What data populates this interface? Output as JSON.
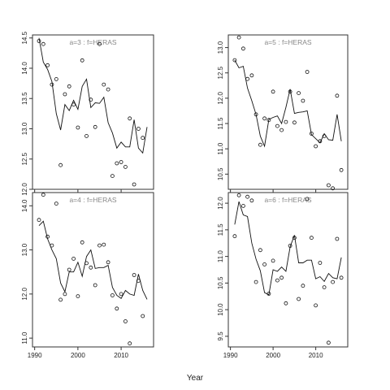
{
  "figure": {
    "xlabel": "Year"
  },
  "chart_data": [
    {
      "type": "line",
      "title": "a=3  :  f=HERAS",
      "xlim": [
        1989.5,
        2017.5
      ],
      "ylim": [
        12.0,
        14.55
      ],
      "yticks": [
        12.0,
        12.5,
        13.0,
        13.5,
        14.0,
        14.5
      ],
      "xticks": [
        1990,
        2000,
        2010
      ],
      "show_x_ticklabels": false,
      "series": [
        {
          "style": "points",
          "x": [
            1991,
            1992,
            1993,
            1994,
            1995,
            1996,
            1997,
            1998,
            1999,
            2000,
            2001,
            2002,
            2003,
            2004,
            2005,
            2006,
            2007,
            2008,
            2009,
            2010,
            2011,
            2012,
            2013,
            2014,
            2015,
            2016
          ],
          "y": [
            14.45,
            14.4,
            14.05,
            13.73,
            13.82,
            12.4,
            13.57,
            13.7,
            13.4,
            13.02,
            14.13,
            12.88,
            13.48,
            13.03,
            14.4,
            13.73,
            13.65,
            12.22,
            12.43,
            12.45,
            12.37,
            13.17,
            12.08,
            13.0,
            12.85,
            null
          ]
        },
        {
          "style": "line",
          "x": [
            1991,
            1992,
            1993,
            1994,
            1995,
            1996,
            1997,
            1998,
            1999,
            2000,
            2001,
            2002,
            2003,
            2004,
            2005,
            2006,
            2007,
            2008,
            2009,
            2010,
            2011,
            2012,
            2013,
            2014,
            2015,
            2016
          ],
          "y": [
            14.5,
            14.1,
            13.98,
            13.78,
            13.25,
            12.98,
            13.4,
            13.3,
            13.47,
            13.32,
            13.7,
            13.82,
            13.35,
            13.43,
            13.42,
            13.52,
            13.1,
            12.93,
            12.68,
            12.78,
            12.7,
            12.7,
            13.15,
            12.68,
            12.6,
            13.03
          ]
        }
      ]
    },
    {
      "type": "line",
      "title": "a=5  :  f=HERAS",
      "xlim": [
        1989.5,
        2017.5
      ],
      "ylim": [
        10.2,
        13.25
      ],
      "yticks": [
        10.5,
        11.0,
        11.5,
        12.0,
        12.5,
        13.0
      ],
      "xticks": [
        1990,
        2000,
        2010
      ],
      "show_x_ticklabels": false,
      "series": [
        {
          "style": "points",
          "x": [
            1991,
            1992,
            1993,
            1994,
            1995,
            1996,
            1997,
            1998,
            1999,
            2000,
            2001,
            2002,
            2003,
            2004,
            2005,
            2006,
            2007,
            2008,
            2009,
            2010,
            2011,
            2012,
            2013,
            2014,
            2015,
            2016
          ],
          "y": [
            12.75,
            13.2,
            12.98,
            12.38,
            12.45,
            11.68,
            11.08,
            11.6,
            11.57,
            12.13,
            11.45,
            11.37,
            11.53,
            12.13,
            11.52,
            12.1,
            11.95,
            12.52,
            11.3,
            11.05,
            11.15,
            11.25,
            10.28,
            10.22,
            12.05,
            10.58
          ]
        },
        {
          "style": "line",
          "x": [
            1991,
            1992,
            1993,
            1994,
            1995,
            1996,
            1997,
            1998,
            1999,
            2000,
            2001,
            2002,
            2003,
            2004,
            2005,
            2006,
            2007,
            2008,
            2009,
            2010,
            2011,
            2012,
            2013,
            2014,
            2015,
            2016
          ],
          "y": [
            12.75,
            12.6,
            12.63,
            12.2,
            11.95,
            11.68,
            11.25,
            11.05,
            11.58,
            11.62,
            11.65,
            11.5,
            11.82,
            12.18,
            11.7,
            11.72,
            11.73,
            11.75,
            11.28,
            11.2,
            11.12,
            11.3,
            11.18,
            11.17,
            11.68,
            11.15
          ]
        }
      ]
    },
    {
      "type": "line",
      "title": "a=4  :  f=HERAS",
      "xlim": [
        1989.5,
        2017.5
      ],
      "ylim": [
        10.8,
        14.3
      ],
      "yticks": [
        11.0,
        12.0,
        13.0,
        14.0
      ],
      "xticks": [
        1990,
        2000,
        2010
      ],
      "show_x_ticklabels": true,
      "xticklabels": [
        "1990",
        "2000",
        "2010"
      ],
      "series": [
        {
          "style": "points",
          "x": [
            1991,
            1992,
            1993,
            1994,
            1995,
            1996,
            1997,
            1998,
            1999,
            2000,
            2001,
            2002,
            2003,
            2004,
            2005,
            2006,
            2007,
            2008,
            2009,
            2010,
            2011,
            2012,
            2013,
            2014,
            2015,
            2016
          ],
          "y": [
            13.68,
            14.25,
            13.3,
            13.1,
            14.05,
            11.87,
            12.0,
            12.55,
            12.8,
            11.95,
            13.17,
            12.7,
            12.6,
            12.2,
            13.1,
            13.12,
            12.72,
            11.97,
            11.67,
            12.0,
            11.38,
            10.88,
            12.43,
            12.3,
            11.5,
            null
          ]
        },
        {
          "style": "line",
          "x": [
            1991,
            1992,
            1993,
            1994,
            1995,
            1996,
            1997,
            1998,
            1999,
            2000,
            2001,
            2002,
            2003,
            2004,
            2005,
            2006,
            2007,
            2008,
            2009,
            2010,
            2011,
            2012,
            2013,
            2014,
            2015,
            2016
          ],
          "y": [
            13.55,
            13.65,
            13.25,
            13.0,
            12.8,
            12.25,
            12.05,
            12.5,
            12.5,
            12.72,
            12.4,
            12.85,
            13.0,
            12.58,
            12.6,
            12.6,
            12.65,
            12.15,
            11.97,
            11.9,
            12.08,
            12.0,
            11.97,
            12.45,
            12.08,
            11.88
          ]
        }
      ]
    },
    {
      "type": "line",
      "title": "a=6  :  f=HERAS",
      "xlim": [
        1989.5,
        2017.5
      ],
      "ylim": [
        9.3,
        12.2
      ],
      "yticks": [
        9.5,
        10.0,
        10.5,
        11.0,
        11.5,
        12.0
      ],
      "xticks": [
        1990,
        2000,
        2010
      ],
      "show_x_ticklabels": true,
      "xticklabels": [
        "1990",
        "2000",
        "2010"
      ],
      "series": [
        {
          "style": "points",
          "x": [
            1991,
            1992,
            1993,
            1994,
            1995,
            1996,
            1997,
            1998,
            1999,
            2000,
            2001,
            2002,
            2003,
            2004,
            2005,
            2006,
            2007,
            2008,
            2009,
            2010,
            2011,
            2012,
            2013,
            2014,
            2015,
            2016
          ],
          "y": [
            11.38,
            12.15,
            11.95,
            12.12,
            12.05,
            10.52,
            11.12,
            10.85,
            10.3,
            10.92,
            10.55,
            10.6,
            10.12,
            11.2,
            11.35,
            10.2,
            10.45,
            12.08,
            11.35,
            10.08,
            10.88,
            10.42,
            9.38,
            10.52,
            11.33,
            10.6
          ]
        },
        {
          "style": "line",
          "x": [
            1991,
            1992,
            1993,
            1994,
            1995,
            1996,
            1997,
            1998,
            1999,
            2000,
            2001,
            2002,
            2003,
            2004,
            2005,
            2006,
            2007,
            2008,
            2009,
            2010,
            2011,
            2012,
            2013,
            2014,
            2015,
            2016
          ],
          "y": [
            11.6,
            12.03,
            11.78,
            11.75,
            11.25,
            10.95,
            10.73,
            10.32,
            10.28,
            10.75,
            10.72,
            10.8,
            10.72,
            11.18,
            11.4,
            10.88,
            10.88,
            10.93,
            10.93,
            10.58,
            10.62,
            10.53,
            10.68,
            10.6,
            10.58,
            10.98
          ]
        }
      ]
    }
  ]
}
